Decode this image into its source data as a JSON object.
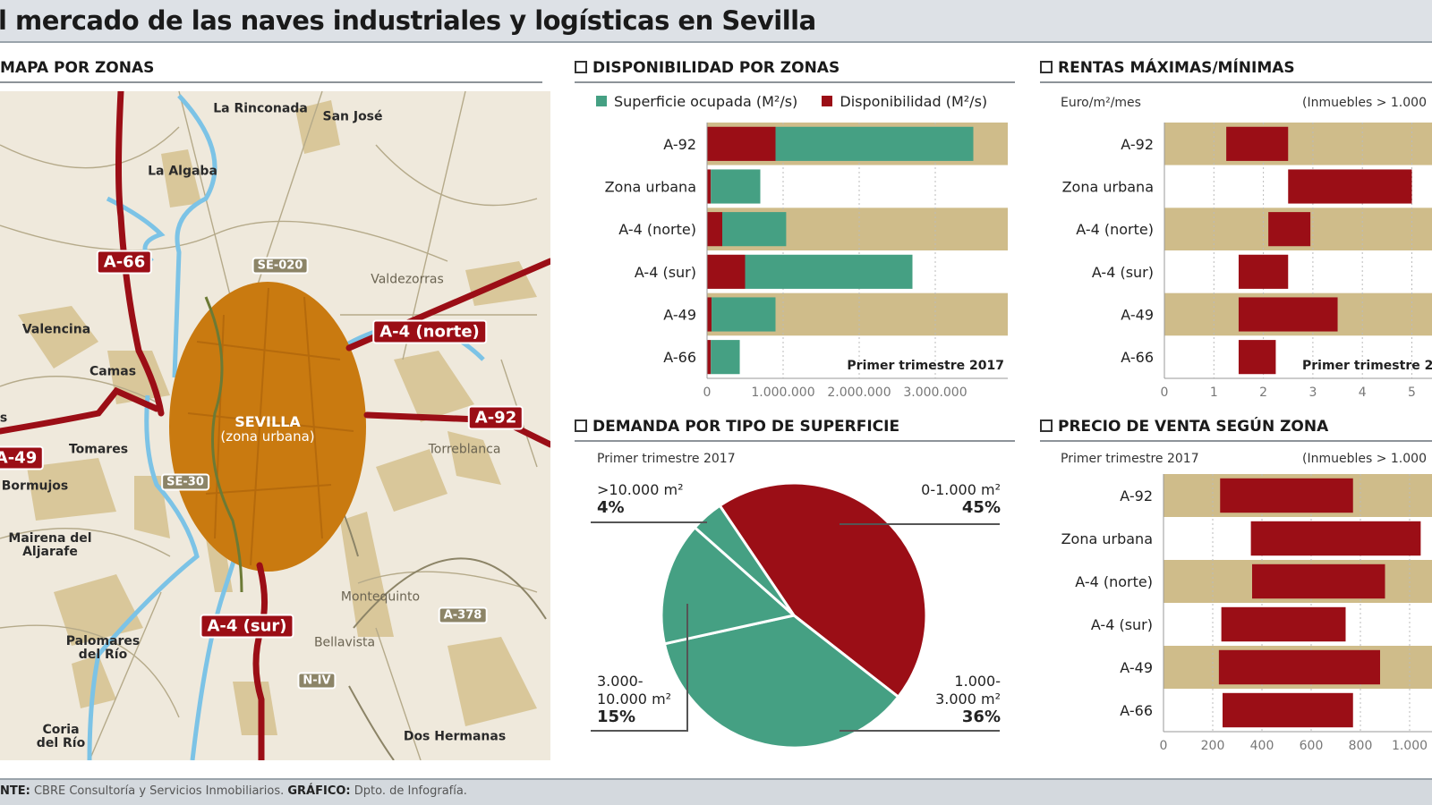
{
  "header": {
    "title": "l mercado de las naves industriales y logísticas en Sevilla"
  },
  "colors": {
    "red": "#9b0e16",
    "green": "#45a083",
    "tan": "#cfbc8a",
    "map_bg": "#efe9dc",
    "urban": "#c97a10",
    "river": "#7cc3e6"
  },
  "map": {
    "heading": "MAPA POR ZONAS",
    "city": {
      "name": "SEVILLA",
      "sub": "(zona urbana)"
    },
    "roads": [
      "A-66",
      "A-4 (norte)",
      "A-92",
      "A-49",
      "A-4 (sur)"
    ],
    "secondary_roads": [
      "SE-020",
      "SE-30",
      "A-378",
      "N-IV"
    ],
    "towns": [
      "La Rinconada",
      "San José",
      "La Algaba",
      "Valdezorras",
      "Valencina",
      "Camas",
      "s",
      "Tomares",
      "Torreblanca",
      "Bormujos",
      "Mairena del Aljarafe",
      "Montequinto",
      "Bellavista",
      "Palomares del Río",
      "Coria del Río",
      "Dos Hermanas"
    ]
  },
  "chart_data": [
    {
      "type": "bar",
      "stacked": true,
      "orientation": "horizontal",
      "title": "DISPONIBILIDAD POR ZONAS",
      "note": "Primer trimestre 2017",
      "categories": [
        "A-92",
        "Zona urbana",
        "A-4 (norte)",
        "A-4 (sur)",
        "A-49",
        "A-66"
      ],
      "series": [
        {
          "name": "Disponibilidad (M²/s)",
          "color": "#9b0e16",
          "values": [
            900000,
            50000,
            200000,
            500000,
            60000,
            50000
          ]
        },
        {
          "name": "Superficie ocupada (M²/s)",
          "color": "#45a083",
          "values": [
            2600000,
            650000,
            840000,
            2200000,
            840000,
            380000
          ]
        }
      ],
      "xticks": [
        "0",
        "1.000.000",
        "2.000.000",
        "3.000.000"
      ],
      "xlim": [
        0,
        4000000
      ]
    },
    {
      "type": "bar",
      "orientation": "horizontal",
      "range": true,
      "title": "RENTAS MÁXIMAS/MÍNIMAS",
      "unit_label": "Euro/m²/mes",
      "qualifier": "(Inmuebles > 1.000",
      "note": "Primer trimestre 2",
      "categories": [
        "A-92",
        "Zona urbana",
        "A-4 (norte)",
        "A-4 (sur)",
        "A-49",
        "A-66"
      ],
      "min": [
        1.25,
        2.5,
        2.1,
        1.5,
        1.5,
        1.5
      ],
      "max": [
        2.5,
        5.0,
        2.95,
        2.5,
        3.5,
        2.25
      ],
      "xticks": [
        "0",
        "1",
        "2",
        "3",
        "4",
        "5"
      ]
    },
    {
      "type": "pie",
      "title": "DEMANDA POR TIPO  DE SUPERFICIE",
      "note": "Primer trimestre 2017",
      "slices": [
        {
          "label": "0-1.000 m²",
          "value": 45,
          "pct": "45%",
          "color": "#9b0e16"
        },
        {
          "label": "1.000-\n3.000 m²",
          "value": 36,
          "pct": "36%",
          "color": "#45a083"
        },
        {
          "label": "3.000-\n10.000 m²",
          "value": 15,
          "pct": "15%",
          "color": "#45a083"
        },
        {
          "label": ">10.000 m²",
          "value": 4,
          "pct": "4%",
          "color": "#45a083"
        }
      ]
    },
    {
      "type": "bar",
      "orientation": "horizontal",
      "range": true,
      "title": "PRECIO DE VENTA SEGÚN ZONA",
      "note": "Primer trimestre 2017",
      "qualifier": "(Inmuebles > 1.000",
      "categories": [
        "A-92",
        "Zona urbana",
        "A-4 (norte)",
        "A-4 (sur)",
        "A-49",
        "A-66"
      ],
      "min": [
        230,
        355,
        360,
        235,
        225,
        240
      ],
      "max": [
        770,
        1045,
        900,
        740,
        880,
        770
      ],
      "xticks": [
        "0",
        "200",
        "400",
        "600",
        "800",
        "1.000"
      ]
    }
  ],
  "footer": {
    "source_label": "NTE:",
    "source": " CBRE Consultoría y Servicios Inmobiliarios. ",
    "graphic_label": "GRÁFICO:",
    "graphic": " Dpto. de Infografía."
  }
}
